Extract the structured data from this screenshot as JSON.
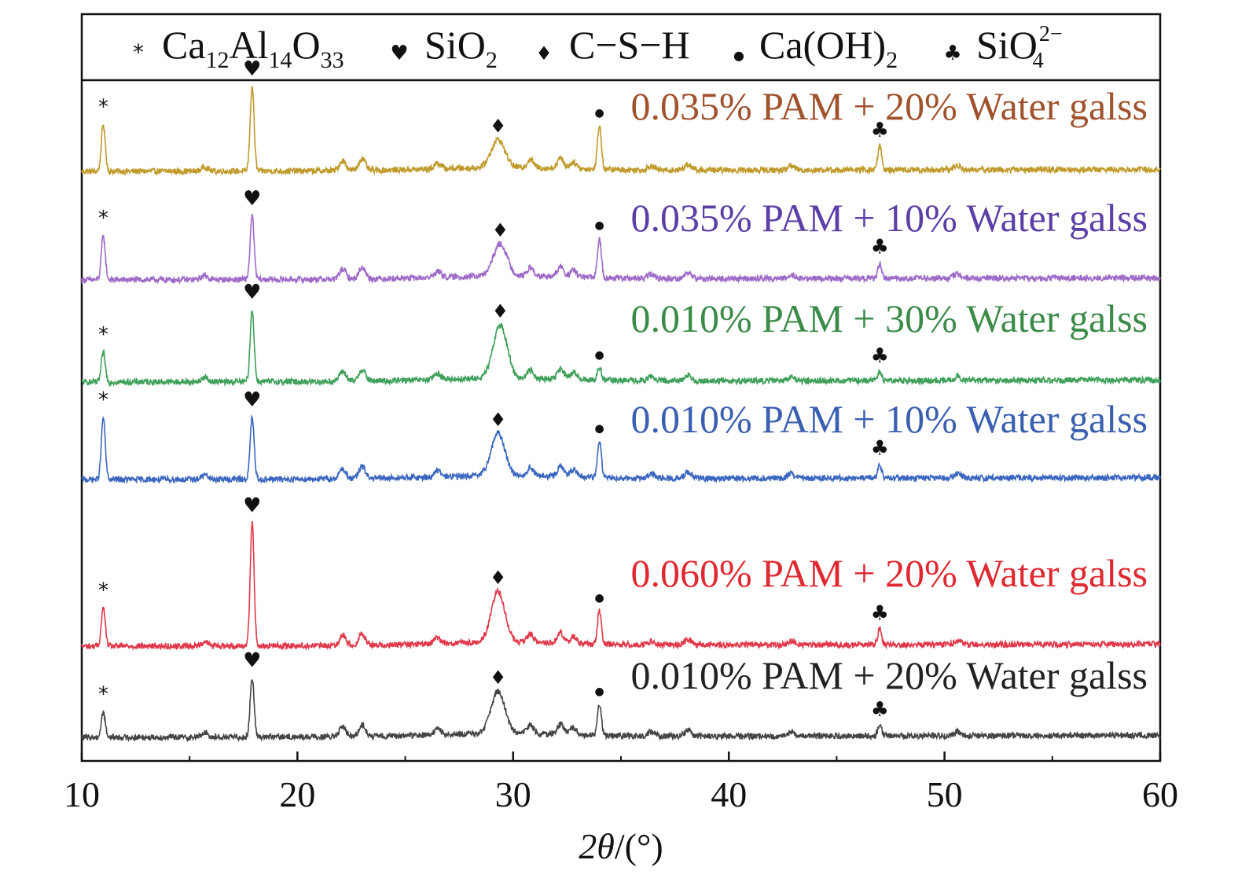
{
  "chart_data": {
    "type": "line",
    "xlabel_var": "2θ",
    "xlabel_unit": "/(°)",
    "xlim": [
      10,
      60
    ],
    "x_ticks": [
      "10",
      "20",
      "30",
      "40",
      "50",
      "60"
    ],
    "legend": [
      {
        "symbol": "*",
        "symbol_icon": "asterisk",
        "formula": "Ca12Al14O33"
      },
      {
        "symbol": "♥",
        "symbol_icon": "heart",
        "formula": "SiO2"
      },
      {
        "symbol": "♦",
        "symbol_icon": "diamond",
        "formula": "C−S−H"
      },
      {
        "symbol": "●",
        "symbol_icon": "dot",
        "formula": "Ca(OH)2"
      },
      {
        "symbol": "♣",
        "symbol_icon": "club",
        "formula": "SiO4 2−"
      }
    ],
    "series": [
      {
        "name": "0.035% PAM + 20% Water galss",
        "color": "#c09a2a",
        "label_color": "#a0522d",
        "peaks": {
          "Ca12Al14O33": [
            11.0,
            0.55
          ],
          "SiO2": [
            17.9,
            1.0
          ],
          "C-S-H": [
            29.3,
            0.33
          ],
          "Ca(OH)2": [
            34.0,
            0.52
          ],
          "SiO4": [
            47.0,
            0.28
          ]
        }
      },
      {
        "name": "0.035% PAM + 10% Water galss",
        "color": "#9e6ac8",
        "label_color": "#5b3fa6",
        "peaks": {
          "Ca12Al14O33": [
            11.0,
            0.52
          ],
          "SiO2": [
            17.9,
            0.75
          ],
          "C-S-H": [
            29.4,
            0.38
          ],
          "Ca(OH)2": [
            34.0,
            0.47
          ],
          "SiO4": [
            47.0,
            0.18
          ]
        }
      },
      {
        "name": "0.010% PAM + 30% Water galss",
        "color": "#3ea05a",
        "label_color": "#3a8a48",
        "peaks": {
          "Ca12Al14O33": [
            11.0,
            0.35
          ],
          "SiO2": [
            17.9,
            0.85
          ],
          "C-S-H": [
            29.4,
            0.63
          ],
          "Ca(OH)2": [
            34.0,
            0.15
          ],
          "SiO4": [
            47.0,
            0.1
          ]
        }
      },
      {
        "name": "0.010% PAM + 10% Water galss",
        "color": "#3a66c0",
        "label_color": "#3b5fb0",
        "peaks": {
          "Ca12Al14O33": [
            11.0,
            0.73
          ],
          "SiO2": [
            17.9,
            0.73
          ],
          "C-S-H": [
            29.3,
            0.5
          ],
          "Ca(OH)2": [
            34.0,
            0.43
          ],
          "SiO4": [
            47.0,
            0.16
          ]
        }
      },
      {
        "name": "0.060% PAM + 20% Water galss",
        "color": "#e0384a",
        "label_color": "#e02830",
        "peaks": {
          "Ca12Al14O33": [
            11.0,
            0.45
          ],
          "SiO2": [
            17.9,
            1.45
          ],
          "C-S-H": [
            29.3,
            0.6
          ],
          "Ca(OH)2": [
            34.0,
            0.4
          ],
          "SiO4": [
            47.0,
            0.18
          ]
        }
      },
      {
        "name": "0.010% PAM + 20% Water galss",
        "color": "#444444",
        "label_color": "#222222",
        "peaks": {
          "Ca12Al14O33": [
            11.0,
            0.3
          ],
          "SiO2": [
            17.9,
            0.7
          ],
          "C-S-H": [
            29.3,
            0.5
          ],
          "Ca(OH)2": [
            34.0,
            0.37
          ],
          "SiO4": [
            47.0,
            0.12
          ]
        }
      }
    ],
    "grid": false,
    "legend_placement": "top"
  }
}
